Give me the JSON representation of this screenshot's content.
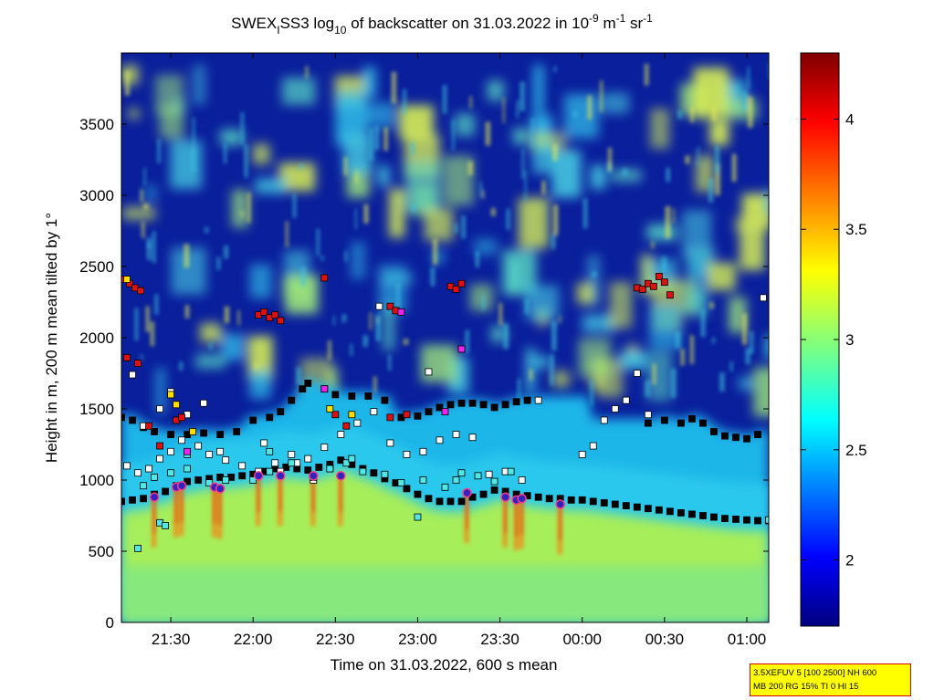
{
  "figure": {
    "title": "SWEX_I SS3 log10 of backscatter on 31.03.2022 in 10^-9 m^-1 sr^-1",
    "title_parts": {
      "prefix": "SWEX",
      "prefix_sub": "I",
      "name": "SS3 log",
      "log_sub": "10",
      "middle": " of backscatter on 31.03.2022 in 10",
      "exp1": "-9",
      "unit1": " m",
      "exp2": "-1",
      "unit2": " sr",
      "exp3": "-1"
    },
    "info_box": {
      "line1": "3.5XEFUV 5 [100 2500] NH 600",
      "line2": "MB 200 RG 15% TI 0 HI 15"
    }
  },
  "chart_data": {
    "type": "heatmap",
    "title": "SWEX_I SS3 log10 of backscatter on 31.03.2022 in 10^-9 m^-1 sr^-1",
    "xlabel": "Time on 31.03.2022, 600 s mean",
    "ylabel": "Height in m, 200 m mean tilted by 1°",
    "x_unit": "time (HH:MM)",
    "xlim": [
      "21:12",
      "01:08"
    ],
    "ylim": [
      0,
      4000
    ],
    "x_ticks": [
      "21:30",
      "22:00",
      "22:30",
      "23:00",
      "23:30",
      "00:00",
      "00:30",
      "01:00"
    ],
    "y_ticks": [
      0,
      500,
      1000,
      1500,
      2000,
      2500,
      3000,
      3500
    ],
    "colorbar": {
      "colormap": "jet",
      "range": [
        1.7,
        4.3
      ],
      "ticks": [
        2,
        2.5,
        3,
        3.5,
        4
      ]
    },
    "layers": {
      "surface_layer": {
        "top_m": 600,
        "log10_value": 3.0
      },
      "mixed_layer": {
        "top_m_start": 1300,
        "top_m_end": 1300,
        "log10_value": 2.5
      },
      "free_troposphere": {
        "log10_value": 1.8
      }
    },
    "aerosol_patch_rows": [
      {
        "y0": 3500,
        "y1": 3950
      },
      {
        "y0": 3000,
        "y1": 3500
      },
      {
        "y0": 2500,
        "y1": 3000
      },
      {
        "y0": 2000,
        "y1": 2500
      },
      {
        "y0": 1700,
        "y1": 2000
      }
    ],
    "series": [
      {
        "name": "black",
        "marker_color": "#000000",
        "points": [
          [
            "21:12",
            850
          ],
          [
            "21:16",
            860
          ],
          [
            "21:20",
            870
          ],
          [
            "21:24",
            900
          ],
          [
            "21:28",
            920
          ],
          [
            "21:32",
            960
          ],
          [
            "21:36",
            990
          ],
          [
            "21:40",
            1000
          ],
          [
            "21:44",
            1010
          ],
          [
            "21:48",
            1020
          ],
          [
            "21:52",
            1020
          ],
          [
            "21:56",
            1030
          ],
          [
            "22:00",
            1040
          ],
          [
            "22:04",
            1060
          ],
          [
            "22:08",
            1080
          ],
          [
            "22:12",
            1090
          ],
          [
            "22:16",
            1080
          ],
          [
            "22:20",
            1070
          ],
          [
            "22:24",
            1090
          ],
          [
            "22:28",
            1110
          ],
          [
            "22:32",
            1140
          ],
          [
            "22:36",
            1110
          ],
          [
            "22:40",
            1080
          ],
          [
            "22:44",
            1050
          ],
          [
            "22:48",
            1010
          ],
          [
            "22:52",
            980
          ],
          [
            "22:56",
            940
          ],
          [
            "23:00",
            900
          ],
          [
            "23:04",
            870
          ],
          [
            "23:08",
            850
          ],
          [
            "23:12",
            850
          ],
          [
            "23:16",
            850
          ],
          [
            "23:20",
            880
          ],
          [
            "23:24",
            900
          ],
          [
            "23:28",
            930
          ],
          [
            "23:32",
            920
          ],
          [
            "23:36",
            900
          ],
          [
            "23:40",
            890
          ],
          [
            "23:44",
            880
          ],
          [
            "23:48",
            870
          ],
          [
            "23:52",
            870
          ],
          [
            "23:56",
            860
          ],
          [
            "00:00",
            860
          ],
          [
            "00:04",
            850
          ],
          [
            "00:08",
            840
          ],
          [
            "00:12",
            830
          ],
          [
            "00:16",
            820
          ],
          [
            "00:20",
            810
          ],
          [
            "00:24",
            800
          ],
          [
            "00:28",
            790
          ],
          [
            "00:32",
            780
          ],
          [
            "00:36",
            770
          ],
          [
            "00:40",
            760
          ],
          [
            "00:44",
            750
          ],
          [
            "00:48",
            740
          ],
          [
            "00:52",
            730
          ],
          [
            "00:56",
            725
          ],
          [
            "01:00",
            720
          ],
          [
            "01:04",
            715
          ],
          [
            "01:08",
            715
          ],
          [
            "21:12",
            1440
          ],
          [
            "21:16",
            1420
          ],
          [
            "21:20",
            1370
          ],
          [
            "21:24",
            1340
          ],
          [
            "21:30",
            1320
          ],
          [
            "21:36",
            1320
          ],
          [
            "21:42",
            1330
          ],
          [
            "21:48",
            1320
          ],
          [
            "21:54",
            1340
          ],
          [
            "22:00",
            1420
          ],
          [
            "22:06",
            1440
          ],
          [
            "22:10",
            1480
          ],
          [
            "22:14",
            1560
          ],
          [
            "22:18",
            1640
          ],
          [
            "22:20",
            1680
          ],
          [
            "22:26",
            1640
          ],
          [
            "22:30",
            1600
          ],
          [
            "22:36",
            1590
          ],
          [
            "22:42",
            1590
          ],
          [
            "22:48",
            1560
          ],
          [
            "22:54",
            1440
          ],
          [
            "23:00",
            1450
          ],
          [
            "23:04",
            1480
          ],
          [
            "23:08",
            1510
          ],
          [
            "23:12",
            1530
          ],
          [
            "23:16",
            1540
          ],
          [
            "23:20",
            1540
          ],
          [
            "23:24",
            1530
          ],
          [
            "23:28",
            1510
          ],
          [
            "23:32",
            1530
          ],
          [
            "23:36",
            1550
          ],
          [
            "23:40",
            1560
          ],
          [
            "00:24",
            1400
          ],
          [
            "00:30",
            1420
          ],
          [
            "00:36",
            1400
          ],
          [
            "00:40",
            1430
          ],
          [
            "00:44",
            1400
          ],
          [
            "00:48",
            1340
          ],
          [
            "00:52",
            1310
          ],
          [
            "00:56",
            1300
          ],
          [
            "01:00",
            1290
          ],
          [
            "01:04",
            1320
          ]
        ]
      },
      {
        "name": "white",
        "marker_color": "#ffffff",
        "points": [
          [
            "21:14",
            1100
          ],
          [
            "21:18",
            1050
          ],
          [
            "21:22",
            1080
          ],
          [
            "21:26",
            1150
          ],
          [
            "21:30",
            1200
          ],
          [
            "21:34",
            1280
          ],
          [
            "21:40",
            1240
          ],
          [
            "21:44",
            1180
          ],
          [
            "21:50",
            1140
          ],
          [
            "21:56",
            1100
          ],
          [
            "22:02",
            1060
          ],
          [
            "22:08",
            1120
          ],
          [
            "22:14",
            1180
          ],
          [
            "22:20",
            1150
          ],
          [
            "22:26",
            1230
          ],
          [
            "22:32",
            1320
          ],
          [
            "22:38",
            1400
          ],
          [
            "22:44",
            1480
          ],
          [
            "22:50",
            1260
          ],
          [
            "22:56",
            1180
          ],
          [
            "23:02",
            1200
          ],
          [
            "23:08",
            1280
          ],
          [
            "23:14",
            1320
          ],
          [
            "23:20",
            1300
          ],
          [
            "23:26",
            1040
          ],
          [
            "23:32",
            1060
          ],
          [
            "23:38",
            1000
          ],
          [
            "23:44",
            1560
          ],
          [
            "00:00",
            1180
          ],
          [
            "00:04",
            1240
          ],
          [
            "00:08",
            1420
          ],
          [
            "00:12",
            1500
          ],
          [
            "00:16",
            1560
          ],
          [
            "00:20",
            1750
          ],
          [
            "00:24",
            1460
          ],
          [
            "01:06",
            2280
          ],
          [
            "21:14",
            1860
          ],
          [
            "21:16",
            1740
          ],
          [
            "21:20",
            1380
          ],
          [
            "21:26",
            1500
          ],
          [
            "21:30",
            1620
          ],
          [
            "21:36",
            1460
          ],
          [
            "21:42",
            1540
          ],
          [
            "21:48",
            1200
          ],
          [
            "22:04",
            1260
          ],
          [
            "22:10",
            1060
          ],
          [
            "22:16",
            1120
          ],
          [
            "22:22",
            1000
          ],
          [
            "22:28",
            1080
          ],
          [
            "23:04",
            1760
          ],
          [
            "22:46",
            2220
          ]
        ]
      },
      {
        "name": "cyan",
        "marker_color": "#55e5e5",
        "points": [
          [
            "21:20",
            960
          ],
          [
            "21:24",
            1020
          ],
          [
            "21:30",
            1050
          ],
          [
            "21:36",
            1080
          ],
          [
            "21:44",
            980
          ],
          [
            "21:50",
            1000
          ],
          [
            "22:00",
            1000
          ],
          [
            "22:06",
            1060
          ],
          [
            "22:14",
            1120
          ],
          [
            "22:22",
            1020
          ],
          [
            "22:28",
            1080
          ],
          [
            "22:34",
            1120
          ],
          [
            "22:40",
            1060
          ],
          [
            "22:48",
            1040
          ],
          [
            "22:54",
            980
          ],
          [
            "23:02",
            1000
          ],
          [
            "23:10",
            950
          ],
          [
            "23:16",
            1050
          ],
          [
            "23:22",
            1030
          ],
          [
            "23:28",
            990
          ],
          [
            "23:34",
            1060
          ],
          [
            "21:26",
            700
          ],
          [
            "21:28",
            680
          ],
          [
            "21:18",
            520
          ],
          [
            "23:00",
            740
          ],
          [
            "01:08",
            720
          ],
          [
            "21:36",
            1180
          ],
          [
            "22:06",
            1200
          ],
          [
            "22:36",
            1150
          ],
          [
            "23:14",
            1000
          ]
        ]
      },
      {
        "name": "red",
        "marker_color": "#dd1111",
        "points": [
          [
            "21:13",
            2410
          ],
          [
            "21:15",
            2380
          ],
          [
            "21:17",
            2350
          ],
          [
            "21:19",
            2330
          ],
          [
            "22:02",
            2160
          ],
          [
            "22:04",
            2180
          ],
          [
            "22:06",
            2140
          ],
          [
            "22:08",
            2160
          ],
          [
            "22:10",
            2120
          ],
          [
            "22:26",
            2420
          ],
          [
            "22:50",
            2220
          ],
          [
            "22:52",
            2190
          ],
          [
            "23:12",
            2360
          ],
          [
            "23:14",
            2340
          ],
          [
            "23:16",
            2380
          ],
          [
            "00:20",
            2350
          ],
          [
            "00:22",
            2340
          ],
          [
            "00:24",
            2380
          ],
          [
            "00:26",
            2360
          ],
          [
            "00:28",
            2430
          ],
          [
            "00:30",
            2390
          ],
          [
            "00:32",
            2300
          ],
          [
            "21:14",
            1860
          ],
          [
            "21:18",
            1820
          ],
          [
            "21:22",
            1380
          ],
          [
            "21:26",
            1240
          ],
          [
            "21:32",
            1420
          ],
          [
            "22:30",
            1460
          ],
          [
            "22:34",
            1380
          ],
          [
            "22:50",
            1440
          ],
          [
            "22:56",
            1460
          ],
          [
            "21:34",
            1440
          ]
        ]
      },
      {
        "name": "yellow",
        "marker_color": "#ffdd00",
        "points": [
          [
            "21:14",
            2410
          ],
          [
            "21:30",
            1600
          ],
          [
            "21:32",
            1530
          ],
          [
            "22:28",
            1500
          ],
          [
            "22:36",
            1460
          ],
          [
            "21:38",
            1340
          ]
        ]
      },
      {
        "name": "magenta",
        "marker_color": "#ee22ee",
        "points": [
          [
            "22:26",
            1640
          ],
          [
            "22:54",
            2180
          ],
          [
            "23:16",
            1920
          ],
          [
            "23:10",
            1480
          ],
          [
            "21:36",
            1200
          ]
        ]
      },
      {
        "name": "circle",
        "marker_color": "#3322bb",
        "points": [
          [
            "21:24",
            880
          ],
          [
            "21:32",
            950
          ],
          [
            "21:34",
            960
          ],
          [
            "21:46",
            950
          ],
          [
            "21:48",
            940
          ],
          [
            "22:02",
            1030
          ],
          [
            "22:10",
            1030
          ],
          [
            "22:22",
            1030
          ],
          [
            "22:32",
            1030
          ],
          [
            "23:18",
            910
          ],
          [
            "23:32",
            880
          ],
          [
            "23:36",
            860
          ],
          [
            "23:38",
            870
          ],
          [
            "23:52",
            830
          ]
        ]
      }
    ]
  }
}
